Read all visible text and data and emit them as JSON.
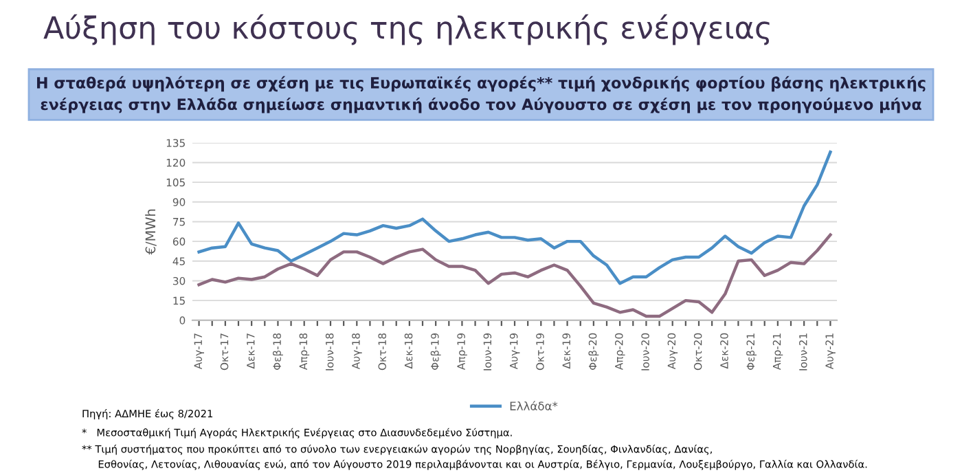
{
  "chart_data": {
    "type": "line",
    "title": "Αύξηση του κόστους της ηλεκτρικής ενέργειας",
    "subtitle": "Η σταθερά υψηλότερη σε σχέση με τις Ευρωπαϊκές αγορές** τιμή χονδρικής φορτίου βάσης ηλεκτρικής\nενέργειας στην Ελλάδα σημείωσε σημαντική άνοδο τον Αύγουστο σε σχέση με τον προηγούμενο μήνα",
    "ylabel": "€/MWh",
    "categories": [
      "Αυγ-17",
      null,
      "Οκτ-17",
      null,
      "Δεκ-17",
      null,
      "Φεβ-18",
      null,
      "Απρ-18",
      null,
      "Ιουν-18",
      null,
      "Αυγ-18",
      null,
      "Οκτ-18",
      null,
      "Δεκ-18",
      null,
      "Φεβ-19",
      null,
      "Απρ-19",
      null,
      "Ιουν-19",
      null,
      "Αυγ-19",
      null,
      "Οκτ-19",
      null,
      "Δεκ-19",
      null,
      "Φεβ-20",
      null,
      "Απρ-20",
      null,
      "Ιουν-20",
      null,
      "Αυγ-20",
      null,
      "Οκτ-20",
      null,
      "Δεκ-20",
      null,
      "Φεβ-21",
      null,
      "Απρ-21",
      null,
      "Ιουν-21",
      null,
      "Αυγ-21"
    ],
    "series": [
      {
        "name": "Ελλάδα*",
        "color": "#4a8ec6",
        "values": [
          52,
          55,
          56,
          74,
          58,
          55,
          53,
          45,
          50,
          55,
          60,
          66,
          65,
          68,
          72,
          70,
          72,
          77,
          68,
          60,
          62,
          65,
          67,
          63,
          63,
          61,
          62,
          55,
          60,
          60,
          49,
          42,
          28,
          33,
          33,
          40,
          46,
          48,
          48,
          55,
          64,
          56,
          51,
          59,
          64,
          63,
          87,
          103,
          128
        ]
      },
      {
        "color": "#8e6b80",
        "values": [
          27,
          31,
          29,
          32,
          31,
          33,
          39,
          43,
          39,
          34,
          46,
          52,
          52,
          48,
          43,
          48,
          52,
          54,
          46,
          41,
          41,
          38,
          28,
          35,
          36,
          33,
          38,
          42,
          38,
          26,
          13,
          10,
          6,
          8,
          3,
          3,
          9,
          15,
          14,
          6,
          20,
          45,
          46,
          34,
          38,
          44,
          43,
          53,
          65
        ]
      }
    ],
    "ylim": [
      0,
      135
    ],
    "yticks": [
      0,
      15,
      30,
      45,
      60,
      75,
      90,
      105,
      120,
      135
    ],
    "grid": "y",
    "legend": "bottom",
    "marker": "none",
    "line_style": "solid",
    "annotations": [
      "Πηγή: ΑΔΜΗΕ έως 8/2021",
      "*   Μεσοσταθμική Τιμή Αγοράς Ηλεκτρικής Ενέργειας στο Διασυνδεδεμένο Σύστημα.",
      "** Τιμή συστήματος που προκύπτει από το σύνολο των ενεργειακών αγορών της Νορβηγίας, Σουηδίας, Φινλανδίας, Δανίας,\n     Εσθονίας, Λετονίας, Λιθουανίας ενώ, από τον Αύγουστο 2019 περιλαμβάνονται και οι Αυστρία, Βέλγιο, Γερμανία, Λουξεμβούργο, Γαλλία και Ολλανδία."
    ]
  }
}
